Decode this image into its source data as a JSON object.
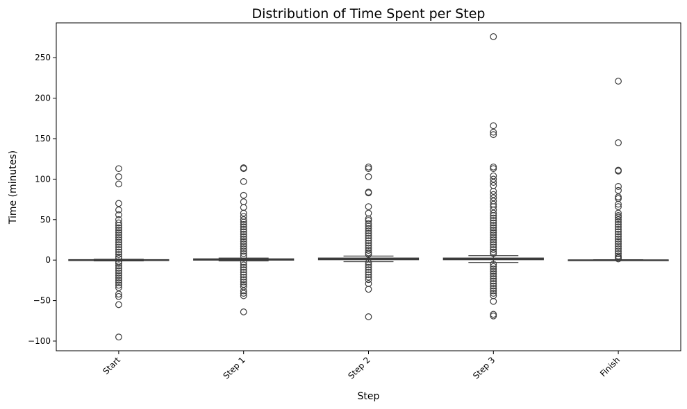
{
  "chart_data": {
    "type": "box",
    "title": "Distribution of Time Spent per Step",
    "xlabel": "Step",
    "ylabel": "Time (minutes)",
    "categories": [
      "Start",
      "Step 1",
      "Step 2",
      "Step 3",
      "Finish"
    ],
    "ylim": [
      -112,
      293
    ],
    "yticks": [
      -100,
      -50,
      0,
      50,
      100,
      150,
      200,
      250
    ],
    "grid": false,
    "box_color": "#3b3b3b",
    "boxes": [
      {
        "category": "Start",
        "q1": -0.5,
        "median": 0,
        "q3": 0.5,
        "whisker_low": -1.0,
        "whisker_high": 1.0,
        "outliers": [
          113,
          103,
          94,
          70,
          62,
          56,
          50,
          46,
          43,
          40,
          37,
          34,
          31,
          28,
          25,
          22,
          19,
          16,
          13,
          10,
          7,
          4,
          2,
          -2,
          -4,
          -7,
          -10,
          -13,
          -16,
          -19,
          -22,
          -25,
          -28,
          -31,
          -34,
          -42,
          -45,
          -55,
          -95
        ]
      },
      {
        "category": "Step 1",
        "q1": 0,
        "median": 0.7,
        "q3": 1.5,
        "whisker_low": -1.0,
        "whisker_high": 2.5,
        "outliers": [
          114,
          113,
          97,
          80,
          72,
          65,
          58,
          54,
          50,
          47,
          44,
          41,
          38,
          35,
          32,
          29,
          26,
          23,
          20,
          17,
          14,
          11,
          8,
          5,
          -3,
          -6,
          -9,
          -12,
          -15,
          -18,
          -21,
          -24,
          -27,
          -30,
          -33,
          -38,
          -41,
          -44,
          -64
        ]
      },
      {
        "category": "Step 2",
        "q1": 0.5,
        "median": 1.5,
        "q3": 2.5,
        "whisker_low": -2.0,
        "whisker_high": 5.0,
        "outliers": [
          115,
          113,
          103,
          84,
          83,
          66,
          58,
          51,
          49,
          45,
          42,
          39,
          36,
          33,
          30,
          27,
          24,
          21,
          18,
          15,
          12,
          9,
          7,
          -3,
          -6,
          -9,
          -12,
          -15,
          -18,
          -21,
          -24,
          -29,
          -36,
          -70
        ]
      },
      {
        "category": "Step 3",
        "q1": 0.5,
        "median": 1.5,
        "q3": 2.5,
        "whisker_low": -3.0,
        "whisker_high": 5.5,
        "outliers": [
          276,
          166,
          158,
          155,
          115,
          113,
          104,
          100,
          96,
          92,
          85,
          81,
          77,
          73,
          69,
          66,
          62,
          58,
          55,
          52,
          49,
          46,
          43,
          40,
          37,
          34,
          31,
          28,
          25,
          22,
          19,
          16,
          13,
          10,
          8,
          -5,
          -8,
          -11,
          -14,
          -17,
          -20,
          -23,
          -26,
          -29,
          -32,
          -35,
          -38,
          -41,
          -44,
          -51,
          -67,
          -69
        ]
      },
      {
        "category": "Finish",
        "q1": -0.2,
        "median": 0,
        "q3": 0.2,
        "whisker_low": -0.5,
        "whisker_high": 0.5,
        "outliers": [
          221,
          145,
          111,
          110,
          91,
          86,
          78,
          76,
          69,
          66,
          58,
          55,
          53,
          50,
          47,
          44,
          41,
          38,
          35,
          32,
          29,
          26,
          23,
          20,
          17,
          14,
          11,
          8,
          5,
          3,
          1.5
        ]
      }
    ]
  }
}
